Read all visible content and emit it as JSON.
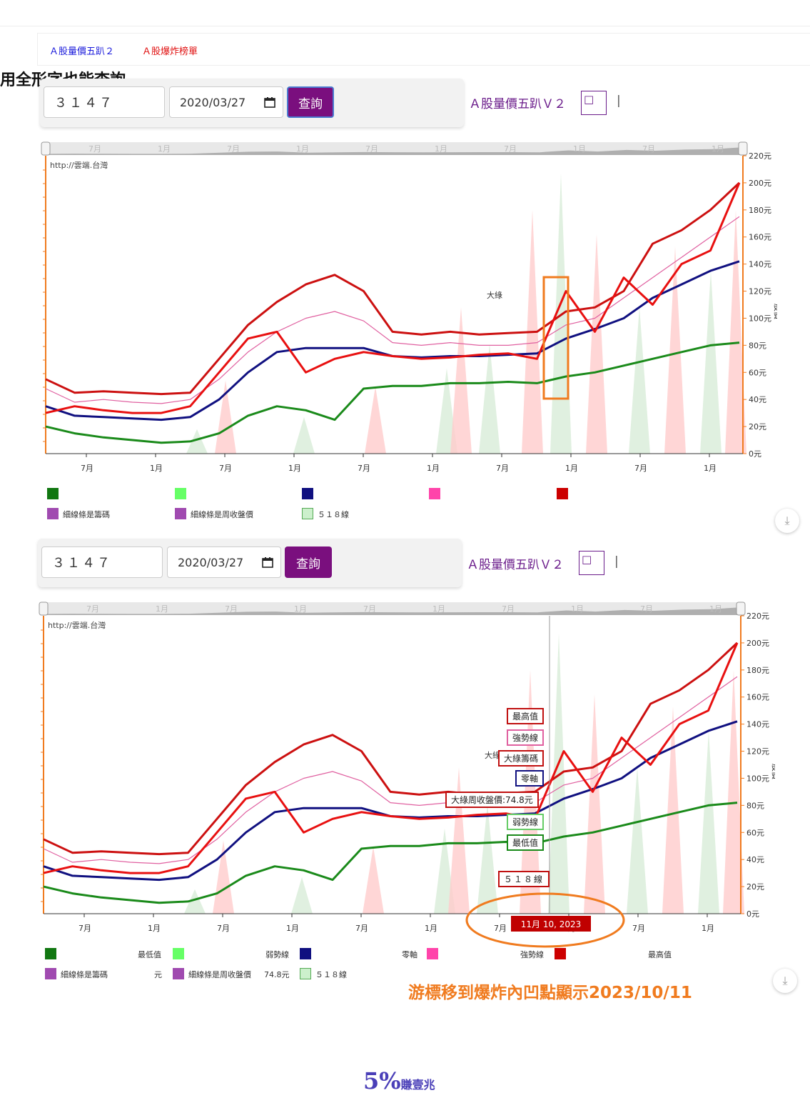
{
  "tabs": [
    {
      "label": "Ａ股量價五趴２",
      "color": "#1a1adb"
    },
    {
      "label": "Ａ股爆炸榜單",
      "color": "#e01010"
    }
  ],
  "hint": "用全形字也能查詢",
  "forms": [
    {
      "code": "３１４７",
      "date": "2020/03/27",
      "button": "查詢"
    },
    {
      "code": "３１４７",
      "date": "2020/03/27",
      "button": "查詢"
    }
  ],
  "v2_link": "Ａ股量價五趴Ｖ２",
  "v2_symbol": "□",
  "pipe": "|",
  "chart_data": [
    {
      "type": "line",
      "watermark": "http://雲端.台灣",
      "y_ticks": [
        "0元",
        "20元",
        "40元",
        "60元",
        "80元",
        "100元",
        "120元",
        "140元",
        "160元",
        "180元",
        "200元",
        "220元"
      ],
      "ylim": [
        0,
        220
      ],
      "ylabel": "股價",
      "x_ticks": [
        "7月",
        "1月",
        "7月",
        "1月",
        "7月",
        "1月",
        "7月",
        "1月",
        "7月",
        "1月"
      ],
      "navigator_ticks": [
        "7月",
        "1月",
        "7月",
        "1月",
        "7月",
        "1月",
        "7月",
        "1月",
        "7月",
        "1月"
      ],
      "annotation": "大綠",
      "series": [
        {
          "key": "top",
          "color": "#cc1010",
          "values": [
            55,
            45,
            46,
            45,
            44,
            45,
            70,
            95,
            112,
            125,
            132,
            120,
            90,
            88,
            90,
            88,
            89,
            90,
            105,
            108,
            120,
            155,
            165,
            180,
            200
          ]
        },
        {
          "key": "strong",
          "color": "#e060a0",
          "values": [
            48,
            38,
            40,
            38,
            37,
            40,
            55,
            75,
            90,
            100,
            105,
            98,
            82,
            80,
            82,
            80,
            80,
            82,
            95,
            100,
            115,
            130,
            145,
            160,
            175
          ]
        },
        {
          "key": "zero",
          "color": "#101080",
          "values": [
            35,
            28,
            27,
            26,
            25,
            27,
            40,
            60,
            75,
            78,
            78,
            78,
            72,
            71,
            72,
            72,
            73,
            74,
            85,
            92,
            100,
            115,
            125,
            135,
            142
          ]
        },
        {
          "key": "weak",
          "color": "#1a8a1a",
          "values": [
            20,
            15,
            12,
            10,
            8,
            9,
            15,
            28,
            35,
            32,
            25,
            48,
            50,
            50,
            52,
            52,
            53,
            52,
            57,
            60,
            65,
            70,
            75,
            80,
            82
          ]
        },
        {
          "key": "close",
          "color": "#e81010",
          "values": [
            30,
            35,
            32,
            30,
            30,
            35,
            60,
            85,
            90,
            60,
            70,
            75,
            72,
            70,
            71,
            73,
            74,
            70,
            120,
            90,
            130,
            110,
            140,
            150,
            200
          ]
        }
      ]
    },
    {
      "type": "line",
      "watermark": "http://雲端.台灣",
      "y_ticks": [
        "0元",
        "20元",
        "40元",
        "60元",
        "80元",
        "100元",
        "120元",
        "140元",
        "160元",
        "180元",
        "200元",
        "220元"
      ],
      "ylim": [
        0,
        220
      ],
      "ylabel": "股價",
      "x_ticks": [
        "7月",
        "1月",
        "7月",
        "1月",
        "7月",
        "1月",
        "7月",
        "1月",
        "7月",
        "1月"
      ],
      "navigator_ticks": [
        "7月",
        "1月",
        "7月",
        "1月",
        "7月",
        "1月",
        "7月",
        "1月",
        "7月",
        "1月"
      ],
      "annotation": "大綠",
      "crosshair_date": "11月 10, 2023",
      "tooltips": [
        "最高值",
        "強勢線",
        "大綠籌碼",
        "零軸",
        "大綠周收盤價:74.8元",
        "弱勢線",
        "最低值",
        "５１８線"
      ],
      "series": [
        {
          "key": "top",
          "color": "#cc1010",
          "values": [
            55,
            45,
            46,
            45,
            44,
            45,
            70,
            95,
            112,
            125,
            132,
            120,
            90,
            88,
            90,
            88,
            89,
            90,
            105,
            108,
            120,
            155,
            165,
            180,
            200
          ]
        },
        {
          "key": "strong",
          "color": "#e060a0",
          "values": [
            48,
            38,
            40,
            38,
            37,
            40,
            55,
            75,
            90,
            100,
            105,
            98,
            82,
            80,
            82,
            80,
            80,
            82,
            95,
            100,
            115,
            130,
            145,
            160,
            175
          ]
        },
        {
          "key": "zero",
          "color": "#101080",
          "values": [
            35,
            28,
            27,
            26,
            25,
            27,
            40,
            60,
            75,
            78,
            78,
            78,
            72,
            71,
            72,
            72,
            73,
            74,
            85,
            92,
            100,
            115,
            125,
            135,
            142
          ]
        },
        {
          "key": "weak",
          "color": "#1a8a1a",
          "values": [
            20,
            15,
            12,
            10,
            8,
            9,
            15,
            28,
            35,
            32,
            25,
            48,
            50,
            50,
            52,
            52,
            53,
            52,
            57,
            60,
            65,
            70,
            75,
            80,
            82
          ]
        },
        {
          "key": "close",
          "color": "#e81010",
          "values": [
            30,
            35,
            32,
            30,
            30,
            35,
            60,
            85,
            90,
            60,
            70,
            75,
            72,
            70,
            71,
            73,
            74,
            70,
            120,
            90,
            130,
            110,
            140,
            150,
            200
          ]
        }
      ]
    }
  ],
  "legend1": {
    "items": [
      "細線條是籌碼",
      "細線條是周收盤價",
      "５１８線"
    ]
  },
  "legend2": {
    "low": "最低值",
    "weak": "弱勢線",
    "zero": "零軸",
    "strong": "強勢線",
    "high": "最高值",
    "thin_chips": "細線條是籌碼",
    "unit": "元",
    "thin_close": "細線條是周收盤價",
    "close_val": "74.8元",
    "l518": "５１８線"
  },
  "note": "游標移到爆炸內凹點顯示2023/10/11",
  "brand": {
    "main": "5%",
    "sub": "賺壹兆"
  },
  "download_icon": "⤓"
}
